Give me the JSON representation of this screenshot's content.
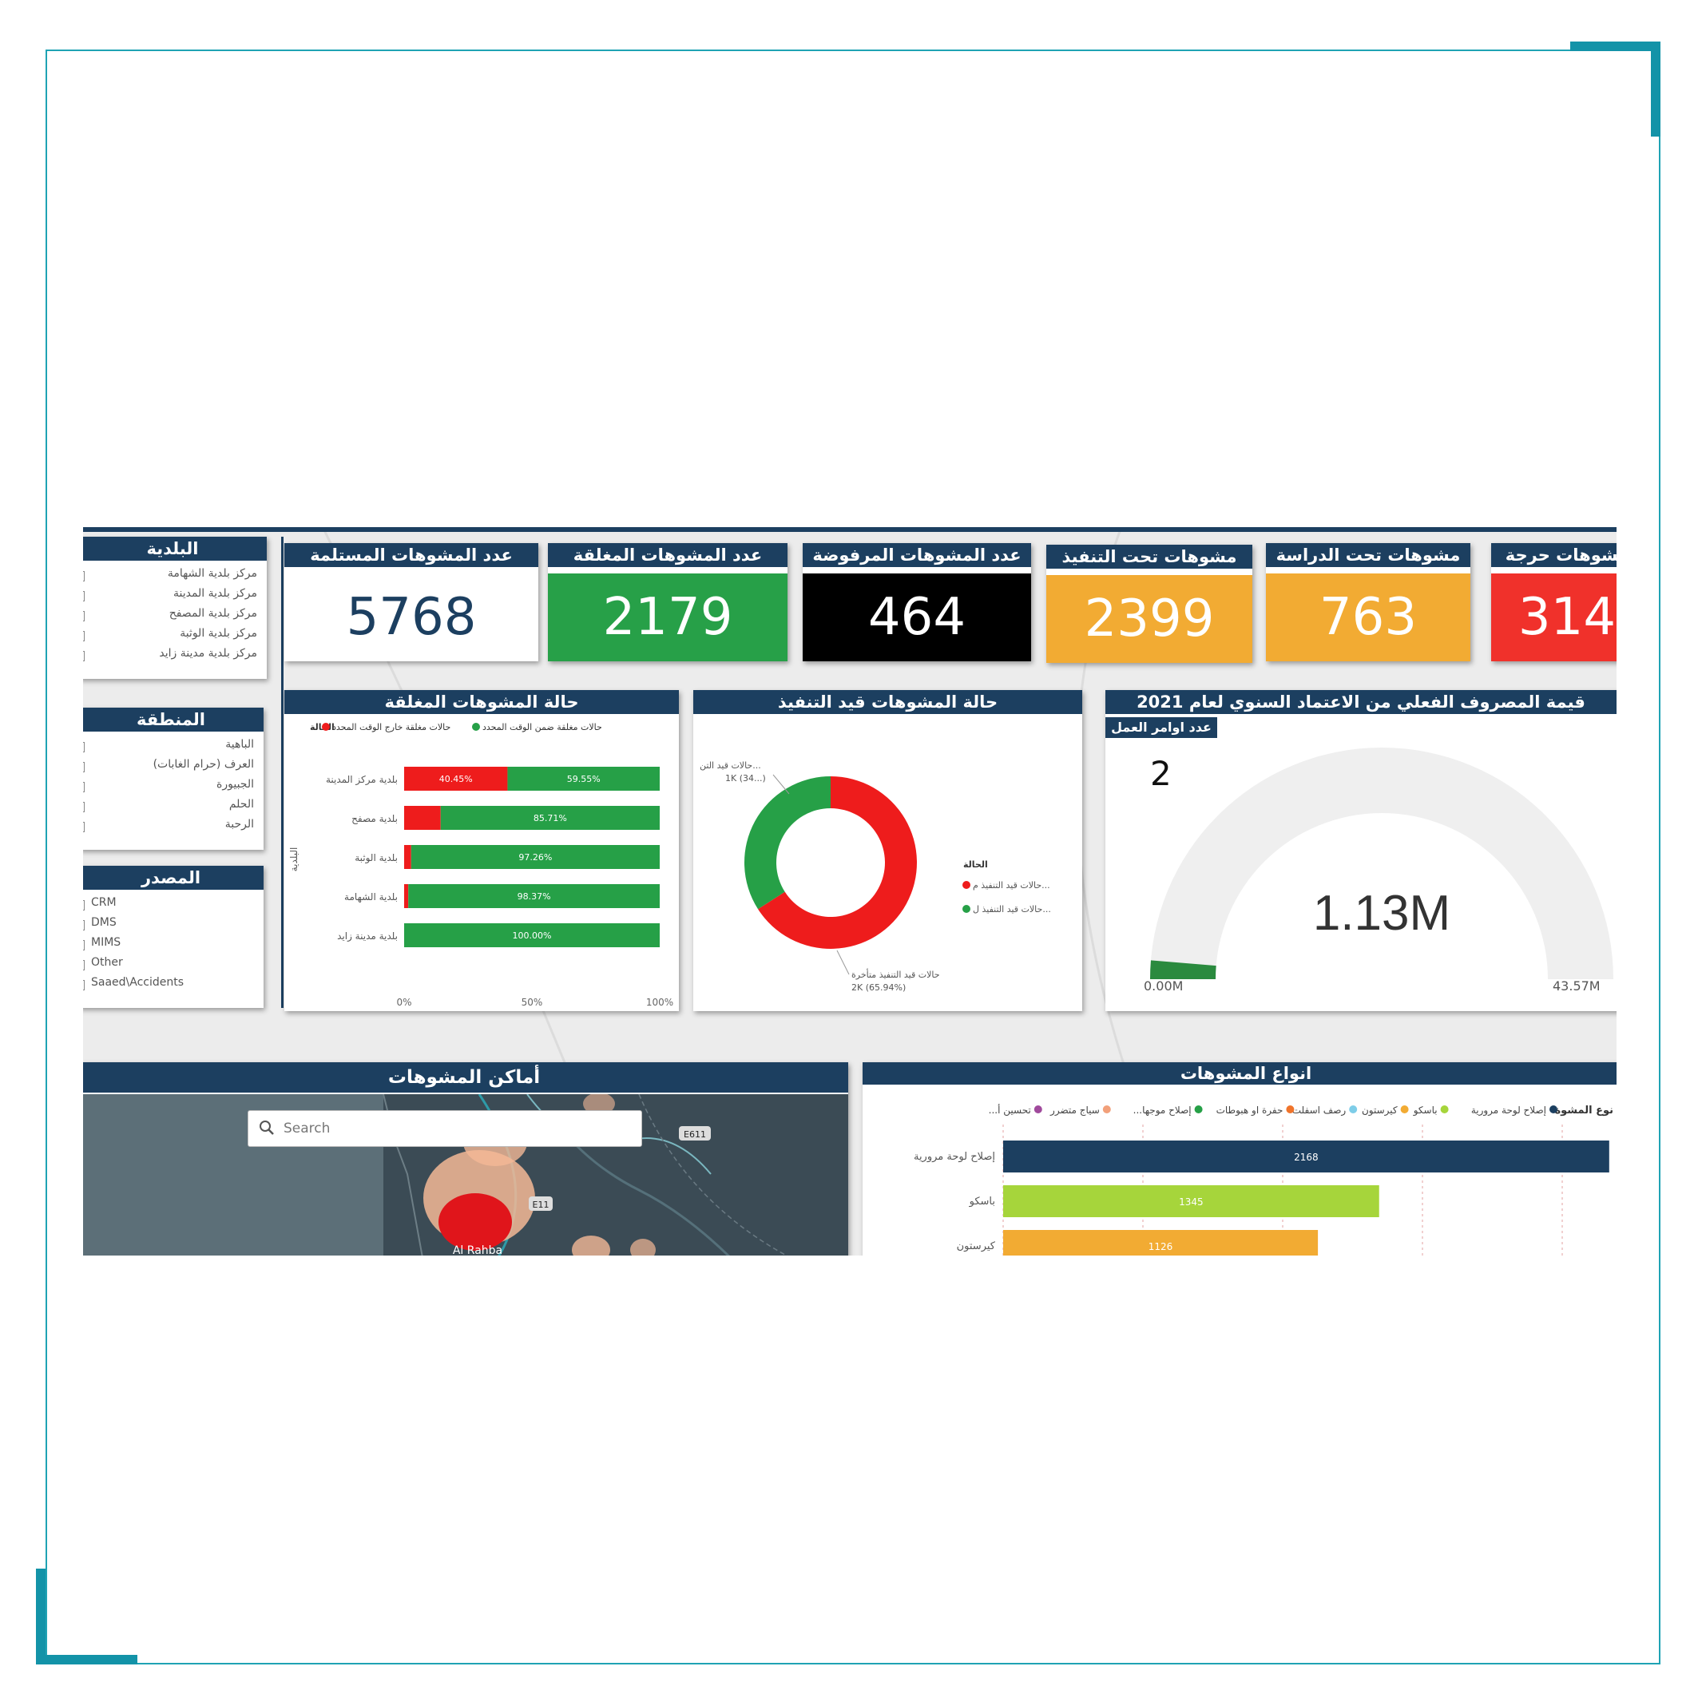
{
  "filters": {
    "municipality": {
      "title": "البلدية",
      "items": [
        "مركز بلدية الشهامة",
        "مركز بلدية المدينة",
        "مركز بلدية المصفح",
        "مركز بلدية الوثبة",
        "مركز بلدية مدينة زايد"
      ]
    },
    "region": {
      "title": "المنطقة",
      "items": [
        "الباهية",
        "العرف (حرام الغابات)",
        "الجبيورة",
        "الحلم",
        "الرحبة"
      ]
    },
    "source": {
      "title": "المصدر",
      "items": [
        "CRM",
        "DMS",
        "MIMS",
        "Other",
        "Saaed\\Accidents"
      ]
    }
  },
  "kpis": [
    {
      "label": "عدد المشوهات المستلمة",
      "value": "5768",
      "bg": "#ffffff",
      "fg": "#1c3f60"
    },
    {
      "label": "عدد المشوهات المغلقة",
      "value": "2179",
      "bg": "#27a048",
      "fg": "#ffffff"
    },
    {
      "label": "عدد المشوهات المرفوضة",
      "value": "464",
      "bg": "#000000",
      "fg": "#ffffff"
    },
    {
      "label": "مشوهات تحت التنفيذ",
      "value": "2399",
      "bg": "#f2ab33",
      "fg": "#ffffff"
    },
    {
      "label": "مشوهات تحت الدراسة",
      "value": "763",
      "bg": "#f2ab33",
      "fg": "#ffffff"
    },
    {
      "label": "مشوهات حرجة",
      "value": "314",
      "bg": "#f0312b",
      "fg": "#ffffff"
    }
  ],
  "closed_panel": {
    "title": "حالة المشوهات المغلقة",
    "legend_title": "الحالة",
    "legend": [
      {
        "label": "حالات مغلقة خارج الوقت المحدد",
        "color": "#ee1c1c"
      },
      {
        "label": "حالات مغلقة ضمن الوقت المحدد",
        "color": "#26a047"
      }
    ],
    "axis_label": "البلدية",
    "x_ticks": [
      "0%",
      "50%",
      "100%"
    ]
  },
  "execution_panel": {
    "title": "حالة المشوهات قيد التنفيذ",
    "legend_title": "الحالة",
    "legend": [
      {
        "label": "حالات قيد التنفيذ م...",
        "color": "#ee1c1c"
      },
      {
        "label": "حالات قيد التنفيذ ل...",
        "color": "#26a047"
      }
    ],
    "label_green": [
      "حالات قيد التن...",
      "1K (34...)"
    ],
    "label_red": [
      "حالات قيد التنفيذ متأخرة",
      "2K (65.94%)"
    ]
  },
  "gauge_panel": {
    "title": "قيمة المصروف الفعلي من الاعتماد السنوي لعام 2021",
    "sub_label": "عدد اوامر العمل",
    "count": "2",
    "center_value": "1.13M",
    "min_label": "0.00M",
    "max_label": "43.57M"
  },
  "map_panel": {
    "title": "أماكن المشوهات",
    "search_placeholder": "Search",
    "road_labels": [
      "E611",
      "E11"
    ],
    "place_label": "Al Rahba"
  },
  "types_panel": {
    "title": "انواع المشوهات",
    "legend_title": "نوع المشوة",
    "legend": [
      {
        "label": "إصلاح لوحة مرورية",
        "color": "#1c3f60"
      },
      {
        "label": "باسكو",
        "color": "#a6d53b"
      },
      {
        "label": "كيرستون",
        "color": "#f2ab33"
      },
      {
        "label": "رصف اسفلت",
        "color": "#7ecde8"
      },
      {
        "label": "حفرة او هبوطات",
        "color": "#f0742b"
      },
      {
        "label": "...إصلاح موجها",
        "color": "#26a047"
      },
      {
        "label": "سياج متضرر",
        "color": "#f2a07a"
      },
      {
        "label": "...تحسين أ",
        "color": "#a04a9c"
      }
    ]
  },
  "chart_data": [
    {
      "type": "bar",
      "orientation": "horizontal",
      "stacked": "percent",
      "title": "حالة المشوهات المغلقة",
      "ylabel": "البلدية",
      "categories": [
        "بلدية مركز المدينة",
        "بلدية مصفح",
        "بلدية الوثبة",
        "بلدية الشهامة",
        "بلدية مدينة زايد"
      ],
      "series": [
        {
          "name": "حالات مغلقة خارج الوقت المحدد",
          "color": "#ee1c1c",
          "values": [
            40.45,
            14.29,
            2.74,
            1.63,
            0.0
          ],
          "labels": [
            "40.45%",
            "",
            "",
            "",
            ""
          ]
        },
        {
          "name": "حالات مغلقة ضمن الوقت المحدد",
          "color": "#26a047",
          "values": [
            59.55,
            85.71,
            97.26,
            98.37,
            100.0
          ],
          "labels": [
            "59.55%",
            "85.71%",
            "97.26%",
            "98.37%",
            "100.00%"
          ]
        }
      ],
      "xlim": [
        0,
        100
      ]
    },
    {
      "type": "pie",
      "donut": true,
      "title": "حالة المشوهات قيد التنفيذ",
      "categories": [
        "حالات قيد التنفيذ متأخرة",
        "حالات قيد التنفيذ ل..."
      ],
      "values": [
        65.94,
        34.06
      ],
      "colors": [
        "#ee1c1c",
        "#26a047"
      ]
    },
    {
      "type": "bar",
      "orientation": "horizontal",
      "title": "انواع المشوهات",
      "categories": [
        "إصلاح لوحة مرورية",
        "باسكو",
        "كيرستون"
      ],
      "values": [
        2168,
        1345,
        1126
      ],
      "colors": [
        "#1c3f60",
        "#a6d53b",
        "#f2ab33"
      ],
      "category_labels_visible": [
        "إصلاح لوحة مرورية",
        "باسكو",
        "كيرستون"
      ]
    }
  ],
  "gauge_data": {
    "value_m": 1.13,
    "min_m": 0.0,
    "max_m": 43.57
  }
}
